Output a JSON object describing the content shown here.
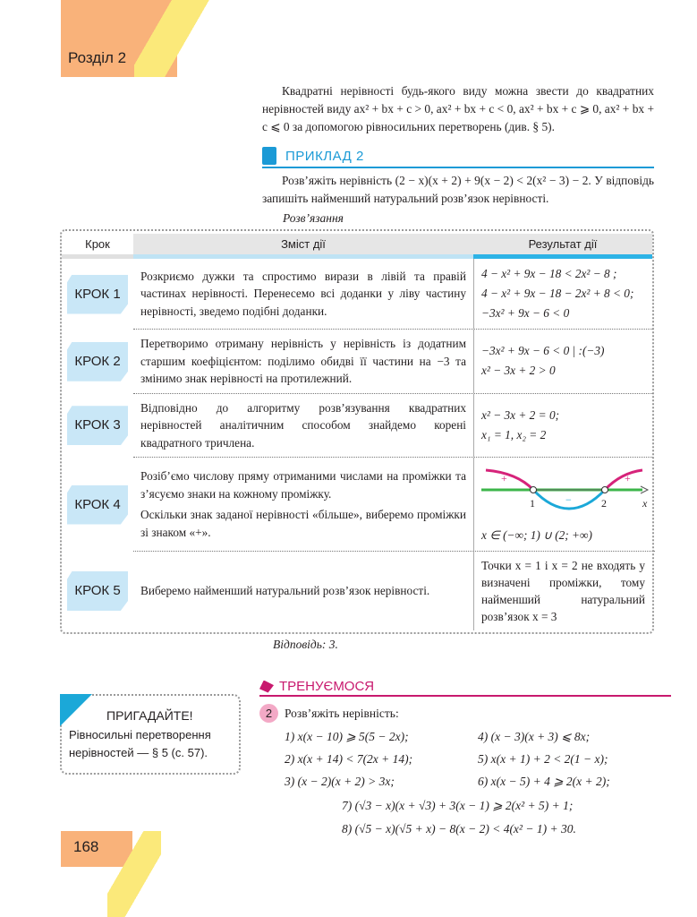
{
  "header": {
    "chapter": "Розділ 2"
  },
  "intro": "Квадратні нерівності будь-якого виду можна звести до квадратних нерівностей виду ax² + bx + c > 0, ax² + bx + c < 0, ax² + bx + c ⩾ 0, ax² + bx + c ⩽ 0 за допомогою рівносильних перетворень (див. § 5).",
  "example": {
    "title": "ПРИКЛАД 2",
    "task": "Розв’яжіть нерівність (2 − x)(x + 2) + 9(x − 2) < 2(x² − 3) − 2. У відповідь запишіть найменший натуральний розв’язок нерівності.",
    "solution_label": "Розв’язання",
    "columns": [
      "Крок",
      "Зміст дії",
      "Результат дії"
    ],
    "steps": [
      {
        "label": "КРОК 1",
        "content": "Розкриємо дужки та спростимо вирази в лівій та правій частинах нерівності. Перенесемо всі доданки у ліву частину нерівності, зведемо подібні доданки.",
        "result": [
          "4 − x² + 9x − 18 < 2x² − 8 ;",
          "4 − x² + 9x − 18 − 2x² + 8 < 0;",
          "−3x² + 9x − 6 < 0"
        ]
      },
      {
        "label": "КРОК 2",
        "content": "Перетворимо отриману нерівність у нерівність із додатним старшим коефіцієнтом: поділимо обидві її частини на −3 та змінимо знак нерівності на протилежний.",
        "result": [
          "−3x² + 9x − 6 < 0 | :(−3)",
          "x² − 3x + 2 > 0"
        ]
      },
      {
        "label": "КРОК 3",
        "content": "Відповідно до алгоритму розв’язування квадратних нерівностей аналітичним способом знайдемо корені квадратного тричлена.",
        "result": [
          "x² − 3x + 2 = 0;",
          "x₁ = 1,  x₂ = 2"
        ]
      },
      {
        "label": "КРОК 4",
        "content": "Розіб’ємо числову пряму отриманими числами на проміжки та з’ясуємо знаки на кожному проміжку.",
        "content2": "Оскільки знак заданої нерівності «більше», виберемо проміжки зі знаком «+».",
        "graph": {
          "root1": "1",
          "root2": "2",
          "axis": "x",
          "sign_left": "+",
          "sign_mid": "−",
          "sign_right": "+",
          "colors": {
            "positive": "#d6237a",
            "negative": "#1ba8d8",
            "axis": "#3cb54a"
          }
        },
        "result": [
          "x ∈ (−∞; 1) ∪ (2; +∞)"
        ]
      },
      {
        "label": "КРОК 5",
        "content": "Виберемо найменший натуральний розв’язок нерівності.",
        "result": [
          "Точки x = 1 і x = 2 не входять у визначені проміжки, тому найменший натуральний розв’язок x = 3"
        ]
      }
    ],
    "answer": "Відповідь: 3."
  },
  "reminder": {
    "title": "ПРИГАДАЙТЕ!",
    "text": "Рівносильні перетворення нерівностей — § 5 (с. 57)."
  },
  "practice": {
    "title": "ТРЕНУЄМОСЯ",
    "number": "2",
    "prompt": "Розв’яжіть нерівність:",
    "items": [
      "1) x(x − 10) ⩾ 5(5 − 2x);",
      "2) x(x + 14) < 7(2x + 14);",
      "3) (x − 2)(x + 2) > 3x;",
      "4) (x − 3)(x + 3) ⩽ 8x;",
      "5) x(x + 1) + 2 < 2(1 − x);",
      "6) x(x − 5) + 4 ⩾ 2(x + 2);",
      "7) (√3 − x)(x + √3) + 3(x − 1) ⩾ 2(x² + 5) + 1;",
      "8) (√5 − x)(√5 + x) − 8(x − 2) < 4(x² − 1) + 30."
    ]
  },
  "footer": {
    "page_number": "168"
  },
  "colors": {
    "header": "#f9b27a",
    "stripe": "#fbe97a",
    "accent_blue": "#1b9ad6",
    "accent_pink": "#c8196e",
    "krok_bg": "#c9e7f7"
  }
}
